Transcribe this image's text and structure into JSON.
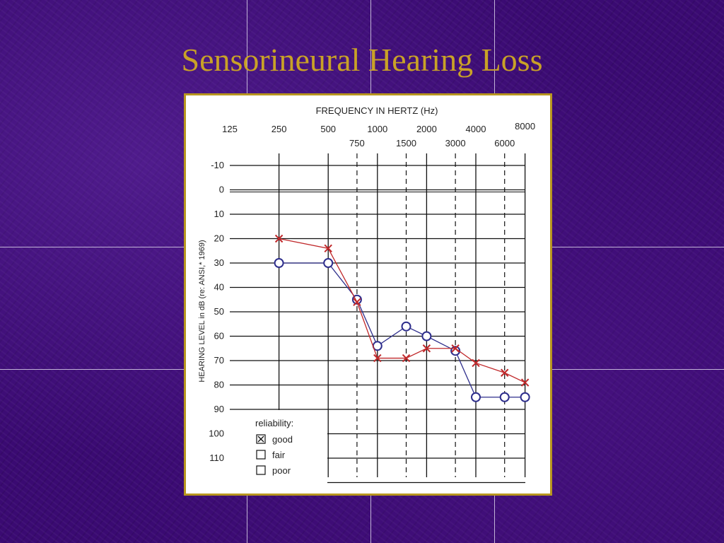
{
  "slide": {
    "title": "Sensorineural Hearing Loss"
  },
  "chart_data": {
    "type": "line",
    "title": "FREQUENCY IN HERTZ (Hz)",
    "ylabel": "HEARING LEVEL in dB (re: ANSI,* 1969)",
    "x_major_ticks": [
      "125",
      "250",
      "500",
      "1000",
      "2000",
      "4000",
      "8000"
    ],
    "x_minor_ticks": [
      "750",
      "1500",
      "3000",
      "6000"
    ],
    "y_ticks": [
      "-10",
      "0",
      "10",
      "20",
      "30",
      "40",
      "50",
      "60",
      "70",
      "80",
      "90",
      "100",
      "110"
    ],
    "ylim": [
      -10,
      120
    ],
    "y_inverted": true,
    "series": [
      {
        "marker": "circle",
        "color": "#2e2e8c",
        "x": [
          250,
          500,
          750,
          1000,
          1500,
          2000,
          3000,
          4000,
          6000,
          8000
        ],
        "values": [
          30,
          30,
          45,
          64,
          56,
          60,
          66,
          85,
          85,
          85
        ]
      },
      {
        "marker": "x",
        "color": "#c0282a",
        "x": [
          250,
          500,
          750,
          1000,
          1500,
          2000,
          3000,
          4000,
          6000,
          8000
        ],
        "values": [
          20,
          24,
          46,
          69,
          69,
          65,
          65,
          71,
          75,
          79
        ]
      }
    ],
    "legend": {
      "title": "reliability:",
      "placement": "bottom-left",
      "items": [
        {
          "label": "good",
          "checked": true
        },
        {
          "label": "fair",
          "checked": false
        },
        {
          "label": "poor",
          "checked": false
        }
      ]
    }
  }
}
